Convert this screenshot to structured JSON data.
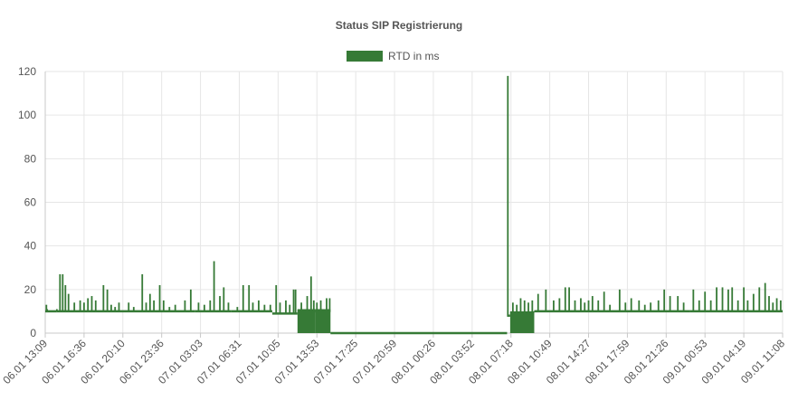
{
  "colors": {
    "series": "#367A36",
    "grid": "#E6E6E6",
    "axis": "#C8C8C8",
    "text": "#555555"
  },
  "chart_data": {
    "type": "line",
    "title": "Status SIP Registrierung",
    "xlabel": "",
    "ylabel": "",
    "ylim": [
      0,
      120
    ],
    "yticks": [
      0,
      20,
      40,
      60,
      80,
      100,
      120
    ],
    "grid": true,
    "legend_position": "top-center",
    "x_labels": [
      "06.01 13:09",
      "06.01 16:36",
      "06.01 20:10",
      "06.01 23:36",
      "07.01 03:03",
      "07.01 06:31",
      "07.01 10:05",
      "07.01 13:53",
      "07.01 17:25",
      "07.01 20:59",
      "08.01 00:26",
      "08.01 03:52",
      "08.01 07:18",
      "08.01 10:49",
      "08.01 14:27",
      "08.01 17:59",
      "08.01 21:26",
      "09.01 00:53",
      "09.01 04:19",
      "09.01 11:08"
    ],
    "series": [
      {
        "name": "RTD in ms",
        "segments": [
          {
            "x_start": 0.0,
            "x_end": 0.3,
            "baseline": 10,
            "spikes": [
              [
                0.03,
                13
              ],
              [
                0.05,
                11
              ],
              [
                0.3,
                11
              ]
            ]
          },
          {
            "x_start": 0.3,
            "x_end": 3.85,
            "baseline": 10,
            "spikes": [
              [
                0.38,
                27
              ],
              [
                0.45,
                27
              ],
              [
                0.52,
                22
              ],
              [
                0.6,
                18
              ],
              [
                0.75,
                14
              ],
              [
                0.9,
                15
              ],
              [
                1.0,
                14
              ],
              [
                1.1,
                16
              ],
              [
                1.2,
                17
              ],
              [
                1.3,
                15
              ],
              [
                1.5,
                22
              ],
              [
                1.6,
                20
              ],
              [
                1.7,
                13
              ],
              [
                1.8,
                12
              ],
              [
                1.9,
                14
              ],
              [
                2.15,
                14
              ],
              [
                2.28,
                12
              ],
              [
                2.5,
                27
              ],
              [
                2.6,
                14
              ],
              [
                2.7,
                18
              ],
              [
                2.8,
                15
              ],
              [
                2.95,
                22
              ],
              [
                3.05,
                15
              ],
              [
                3.2,
                12
              ],
              [
                3.35,
                13
              ],
              [
                3.6,
                15
              ],
              [
                3.75,
                20
              ]
            ]
          },
          {
            "x_start": 3.85,
            "x_end": 4.8,
            "baseline": 10,
            "spikes": [
              [
                3.95,
                14
              ],
              [
                4.1,
                13
              ],
              [
                4.25,
                15
              ],
              [
                4.35,
                33
              ],
              [
                4.5,
                17
              ],
              [
                4.6,
                21
              ],
              [
                4.72,
                14
              ]
            ]
          },
          {
            "x_start": 4.8,
            "x_end": 5.85,
            "baseline": 10,
            "spikes": [
              [
                4.95,
                12
              ],
              [
                5.1,
                22
              ],
              [
                5.25,
                22
              ],
              [
                5.35,
                14
              ],
              [
                5.5,
                15
              ],
              [
                5.65,
                13
              ],
              [
                5.8,
                13
              ]
            ]
          },
          {
            "x_start": 5.85,
            "x_end": 6.5,
            "baseline": 9,
            "spikes": [
              [
                5.95,
                22
              ],
              [
                6.05,
                14
              ],
              [
                6.2,
                15
              ],
              [
                6.3,
                13
              ],
              [
                6.4,
                20
              ],
              [
                6.45,
                20
              ]
            ]
          },
          {
            "x_start": 6.5,
            "x_end": 6.95,
            "baseline": 10,
            "flicker_to": 0,
            "spikes": [
              [
                6.6,
                14
              ],
              [
                6.75,
                17
              ],
              [
                6.85,
                26
              ],
              [
                6.92,
                15
              ]
            ]
          },
          {
            "x_start": 6.95,
            "x_end": 7.35,
            "baseline": 10,
            "flicker_to": 0,
            "spikes": [
              [
                7.0,
                14
              ],
              [
                7.1,
                15
              ],
              [
                7.25,
                16
              ],
              [
                7.33,
                16
              ]
            ]
          },
          {
            "x_start": 7.35,
            "x_end": 11.9,
            "baseline": 0,
            "spikes": []
          },
          {
            "x_start": 11.9,
            "x_end": 11.98,
            "baseline": 8,
            "spikes": [
              [
                11.92,
                118
              ]
            ]
          },
          {
            "x_start": 11.98,
            "x_end": 12.6,
            "baseline": 9,
            "flicker_to": 0,
            "spikes": [
              [
                12.05,
                14
              ],
              [
                12.15,
                13
              ],
              [
                12.25,
                16
              ],
              [
                12.35,
                15
              ],
              [
                12.45,
                14
              ],
              [
                12.55,
                15
              ]
            ]
          },
          {
            "x_start": 12.6,
            "x_end": 16.6,
            "baseline": 10,
            "spikes": [
              [
                12.7,
                18
              ],
              [
                12.9,
                20
              ],
              [
                13.1,
                15
              ],
              [
                13.25,
                16
              ],
              [
                13.4,
                21
              ],
              [
                13.5,
                21
              ],
              [
                13.65,
                15
              ],
              [
                13.8,
                16
              ],
              [
                13.9,
                14
              ],
              [
                14.0,
                15
              ],
              [
                14.1,
                17
              ],
              [
                14.25,
                15
              ],
              [
                14.4,
                19
              ],
              [
                14.55,
                13
              ],
              [
                14.8,
                20
              ],
              [
                14.95,
                14
              ],
              [
                15.1,
                16
              ],
              [
                15.3,
                15
              ],
              [
                15.45,
                13
              ],
              [
                15.6,
                14
              ],
              [
                15.8,
                15
              ],
              [
                15.95,
                20
              ],
              [
                16.1,
                17
              ],
              [
                16.3,
                17
              ],
              [
                16.45,
                14
              ]
            ]
          },
          {
            "x_start": 16.6,
            "x_end": 19.0,
            "baseline": 10,
            "spikes": [
              [
                16.7,
                20
              ],
              [
                16.85,
                15
              ],
              [
                17.0,
                19
              ],
              [
                17.15,
                15
              ],
              [
                17.3,
                21
              ],
              [
                17.45,
                21
              ],
              [
                17.6,
                20
              ],
              [
                17.7,
                21
              ],
              [
                17.85,
                15
              ],
              [
                18.0,
                21
              ],
              [
                18.1,
                15
              ],
              [
                18.25,
                18
              ],
              [
                18.4,
                21
              ],
              [
                18.55,
                23
              ],
              [
                18.65,
                17
              ],
              [
                18.75,
                14
              ],
              [
                18.85,
                16
              ],
              [
                18.95,
                15
              ]
            ]
          }
        ]
      }
    ]
  }
}
